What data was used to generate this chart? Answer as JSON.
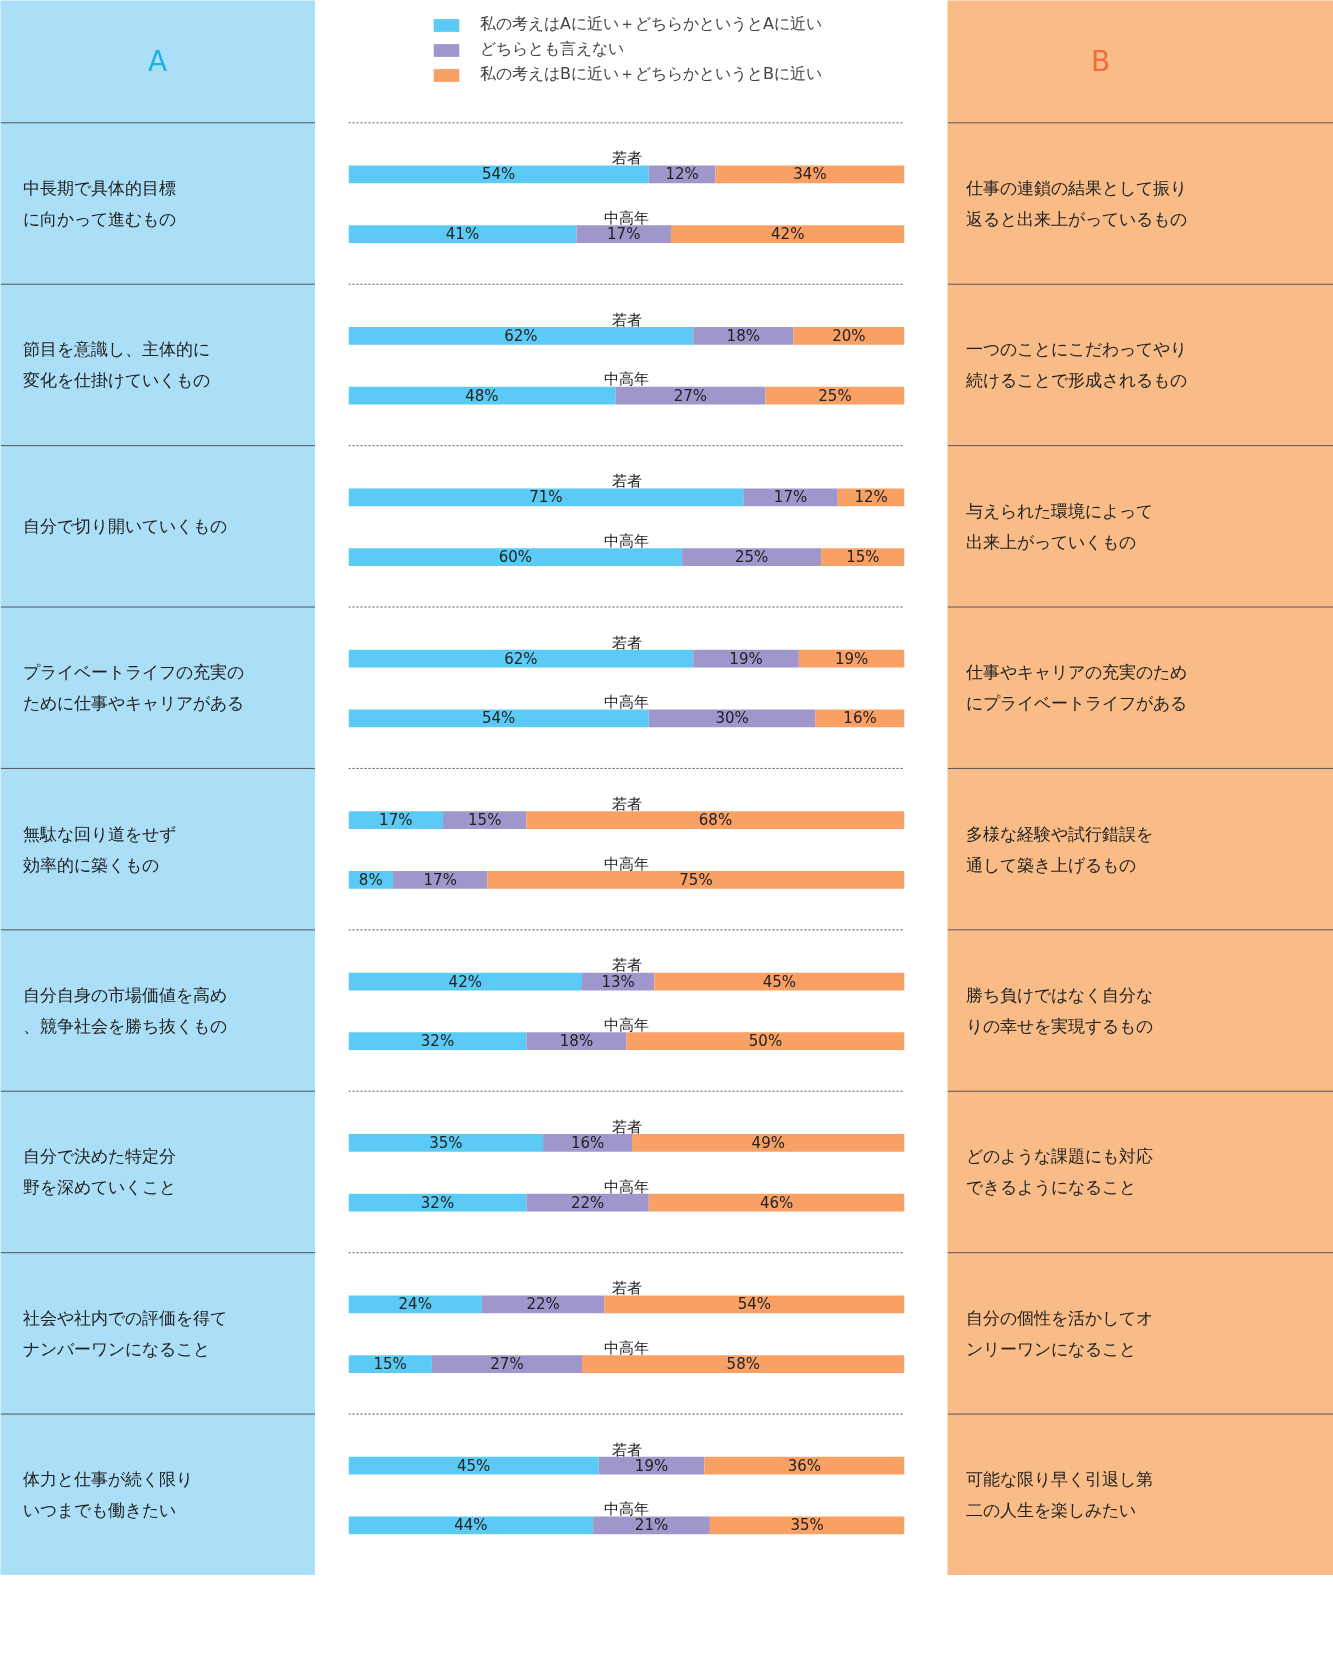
{
  "chart_data": {
    "type": "bar",
    "orientation": "horizontal",
    "stacked": true,
    "xlim": [
      0,
      100
    ],
    "tick_labels": false,
    "grid": false,
    "legend": "top",
    "categories": [
      "若者",
      "中高年",
      "若者",
      "中高年",
      "若者",
      "中高年",
      "若者",
      "中高年",
      "若者",
      "中高年",
      "若者",
      "中高年",
      "若者",
      "中高年",
      "若者",
      "中高年",
      "若者",
      "中高年"
    ],
    "series": [
      {
        "name": "私の考えはAに近い＋どちらかというとAに近い",
        "color": "#5bcbf5",
        "values": [
          54,
          41,
          62,
          48,
          71,
          60,
          62,
          54,
          17,
          8,
          42,
          32,
          35,
          32,
          24,
          15,
          45,
          44
        ],
        "value_labels": [
          "54%",
          "41%",
          "62%",
          "48%",
          "71%",
          "60%",
          "62%",
          "54%",
          "17%",
          "8%",
          "42%",
          "32%",
          "35%",
          "32%",
          "24%",
          "15%",
          "45%",
          "44%"
        ]
      },
      {
        "name": "どちらとも言えない",
        "color": "#9f97cc",
        "values": [
          12,
          17,
          18,
          27,
          17,
          25,
          19,
          30,
          15,
          17,
          13,
          18,
          16,
          22,
          22,
          27,
          19,
          21
        ],
        "value_labels": [
          "12%",
          "17%",
          "18%",
          "27%",
          "17%",
          "25%",
          "19%",
          "30%",
          "15%",
          "17%",
          "13%",
          "18%",
          "16%",
          "22%",
          "22%",
          "27%",
          "19%",
          "21%"
        ]
      },
      {
        "name": "私の考えはBに近い＋どちらかというとBに近い",
        "color": "#f9a065",
        "values": [
          34,
          42,
          20,
          25,
          12,
          15,
          19,
          16,
          68,
          75,
          45,
          50,
          49,
          46,
          54,
          58,
          36,
          35
        ],
        "value_labels": [
          "34%",
          "42%",
          "20%",
          "25%",
          "12%",
          "15%",
          "19%",
          "16%",
          "68%",
          "75%",
          "45%",
          "50%",
          "49%",
          "46%",
          "54%",
          "58%",
          "36%",
          "35%"
        ]
      }
    ],
    "annotations": [
      "A",
      "B",
      "中長期で具体的目標に向かって進むもの",
      "仕事の連鎖の結果として振り返ると出来上がっているもの",
      "節目を意識し、主体的に変化を仕掛けていくもの",
      "一つのことにこだわってやり続けることで形成されるもの",
      "自分で切り開いていくもの",
      "与えられた環境によって出来上がっていくもの",
      "プライベートライフの充実のために仕事やキャリアがある",
      "仕事やキャリアの充実のためにプライベートライフがある",
      "無駄な回り道をせず効率的に築くもの",
      "多様な経験や試行錯誤を通して築き上げるもの",
      "自分自身の市場価値を高め、競争社会を勝ち抜くもの",
      "勝ち負けではなく自分なりの幸せを実現するもの",
      "自分で決めた特定分野を深めていくこと",
      "どのような課題にも対応できるようになること",
      "社会や社内での評価を得てナンバーワンになること",
      "自分の個性を活かしてオンリーワンになること",
      "体力と仕事が続く限りいつまでも働きたい",
      "可能な限り早く引退し第二の人生を楽しみたい"
    ]
  }
}
